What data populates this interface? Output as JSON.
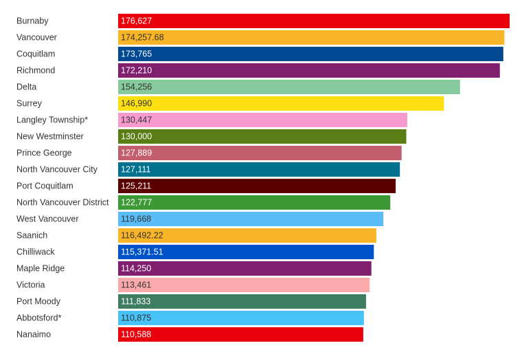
{
  "chart_data": {
    "type": "bar",
    "orientation": "horizontal",
    "title": "",
    "xlabel": "",
    "ylabel": "",
    "categories": [
      "Burnaby",
      "Vancouver",
      "Coquitlam",
      "Richmond",
      "Delta",
      "Surrey",
      "Langley Township*",
      "New Westminster",
      "Prince George",
      "North Vancouver City",
      "Port Coquitlam",
      "North Vancouver District",
      "West Vancouver",
      "Saanich",
      "Chilliwack",
      "Maple Ridge",
      "Victoria",
      "Port Moody",
      "Abbotsford*",
      "Nanaimo"
    ],
    "values": [
      176627,
      174257.68,
      173765,
      172210,
      154256,
      146990,
      130447,
      130000,
      127889,
      127111,
      125211,
      122777,
      119668,
      116492.22,
      115371.51,
      114250,
      113461,
      111833,
      110875,
      110588
    ],
    "value_labels": [
      "176,627",
      "174,257.68",
      "173,765",
      "172,210",
      "154,256",
      "146,990",
      "130,447",
      "130,000",
      "127,889",
      "127,111",
      "125,211",
      "122,777",
      "119,668",
      "116,492.22",
      "115,371.51",
      "114,250",
      "113,461",
      "111,833",
      "110,875",
      "110,588"
    ],
    "colors": [
      "#e8000b",
      "#f9b528",
      "#004892",
      "#7f1f6e",
      "#86c99c",
      "#fde012",
      "#f79bcf",
      "#5a7d15",
      "#c35e6c",
      "#00718f",
      "#5b0000",
      "#3c9a35",
      "#5bbdf8",
      "#f9b528",
      "#0052c9",
      "#7f1f6e",
      "#fbaaab",
      "#3e7d62",
      "#47c3f7",
      "#e8000b"
    ],
    "label_text_colors": [
      "#ffffff",
      "#333333",
      "#ffffff",
      "#ffffff",
      "#333333",
      "#333333",
      "#333333",
      "#ffffff",
      "#ffffff",
      "#ffffff",
      "#ffffff",
      "#ffffff",
      "#333333",
      "#333333",
      "#ffffff",
      "#ffffff",
      "#333333",
      "#ffffff",
      "#333333",
      "#ffffff"
    ],
    "xlim": [
      0,
      176627
    ],
    "grid": false,
    "legend": "none"
  }
}
